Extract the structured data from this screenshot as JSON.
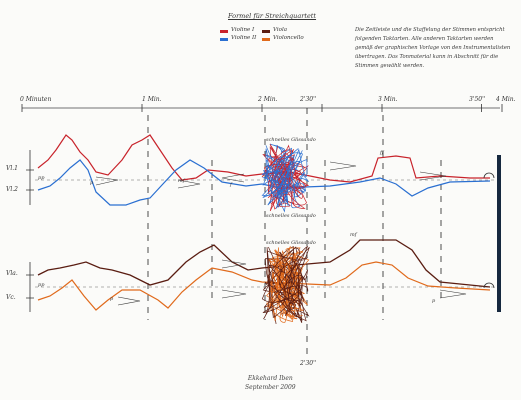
{
  "legend": {
    "title": "Formel für Streichquartett",
    "items": [
      {
        "label": "Violine I",
        "color": "#c8232b"
      },
      {
        "label": "Violine II",
        "color": "#2a6fd1"
      },
      {
        "label": "Viola",
        "color": "#5a1d12"
      },
      {
        "label": "Violoncello",
        "color": "#e06a1c"
      }
    ]
  },
  "note": "Die Zeitleiste und die Staffelung der Stimmen entspricht folgenden Taktarten. Alle anderen Taktarten werden gemäß der graphischen Vorlage von den Instrumentalisten übertragen. Das Tonmaterial kann in Abschnitt für die Stimmen gewählt werden.",
  "timeline": {
    "marks": [
      {
        "label": "0 Minuten",
        "t": 0
      },
      {
        "label": "1 Min.",
        "t": 1
      },
      {
        "label": "2 Min.",
        "t": 2
      },
      {
        "label": "2'30''",
        "t": 2.5
      },
      {
        "label": "3 Min.",
        "t": 3
      },
      {
        "label": "3'50''",
        "t": 3.83
      },
      {
        "label": "4 Min.",
        "t": 4
      }
    ],
    "bottom_mark": "2'30''"
  },
  "staves": {
    "upper": {
      "labels": [
        "Vl.1",
        "Vl.2"
      ]
    },
    "lower": {
      "labels": [
        "Vla.",
        "Vc."
      ]
    }
  },
  "cluster_labels": {
    "upper_top": "schnelles Glissando",
    "upper_bottom": "schnelles Glissando",
    "lower_top": "schnelles Glissando"
  },
  "dynamics": [
    "pp",
    "p",
    "mf",
    "f",
    "ff"
  ],
  "signature": {
    "name": "Ekkehard Iben",
    "date": "September 2009"
  }
}
